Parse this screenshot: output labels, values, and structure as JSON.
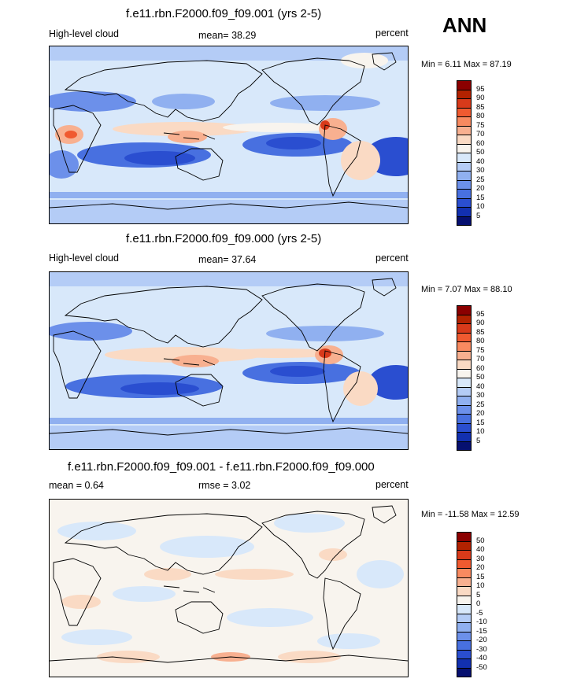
{
  "season": "ANN",
  "panels": [
    {
      "title": "f.e11.rbn.F2000.f09_f09.001 (yrs 2-5)",
      "left_label": "High-level cloud",
      "stat_label": "mean=",
      "stat_value": "38.29",
      "right_label": "percent",
      "minmax": "Min =   6.11 Max =  87.19",
      "colorbar_labels": [
        "95",
        "90",
        "85",
        "80",
        "75",
        "70",
        "60",
        "50",
        "40",
        "30",
        "25",
        "20",
        "15",
        "10",
        "5"
      ],
      "colorbar_colors": [
        "#8b0000",
        "#b22200",
        "#d83a1a",
        "#f05a30",
        "#f88a60",
        "#f8b090",
        "#fadac4",
        "#f8f4ee",
        "#d8e8fa",
        "#b4ccf6",
        "#90b0f0",
        "#6c90ea",
        "#4870e0",
        "#2a4ed0",
        "#1230b0",
        "#061070"
      ]
    },
    {
      "title": "f.e11.rbn.F2000.f09_f09.000 (yrs 2-5)",
      "left_label": "High-level cloud",
      "stat_label": "mean=",
      "stat_value": "37.64",
      "right_label": "percent",
      "minmax": "Min =   7.07 Max =  88.10",
      "colorbar_labels": [
        "95",
        "90",
        "85",
        "80",
        "75",
        "70",
        "60",
        "50",
        "40",
        "30",
        "25",
        "20",
        "15",
        "10",
        "5"
      ],
      "colorbar_colors": [
        "#8b0000",
        "#b22200",
        "#d83a1a",
        "#f05a30",
        "#f88a60",
        "#f8b090",
        "#fadac4",
        "#f8f4ee",
        "#d8e8fa",
        "#b4ccf6",
        "#90b0f0",
        "#6c90ea",
        "#4870e0",
        "#2a4ed0",
        "#1230b0",
        "#061070"
      ]
    },
    {
      "title": "f.e11.rbn.F2000.f09_f09.001 - f.e11.rbn.F2000.f09_f09.000",
      "left_label": "mean =   0.64",
      "stat_label": "rmse =",
      "stat_value": "3.02",
      "right_label": "percent",
      "minmax": "Min = -11.58 Max =  12.59",
      "colorbar_labels": [
        "50",
        "40",
        "30",
        "20",
        "15",
        "10",
        "5",
        "0",
        "-5",
        "-10",
        "-15",
        "-20",
        "-30",
        "-40",
        "-50"
      ],
      "colorbar_colors": [
        "#8b0000",
        "#b22200",
        "#d83a1a",
        "#f05a30",
        "#f88a60",
        "#f8b090",
        "#fadac4",
        "#f8f4ee",
        "#d8e8fa",
        "#b4ccf6",
        "#90b0f0",
        "#6c90ea",
        "#4870e0",
        "#2a4ed0",
        "#1230b0",
        "#061070"
      ]
    }
  ]
}
